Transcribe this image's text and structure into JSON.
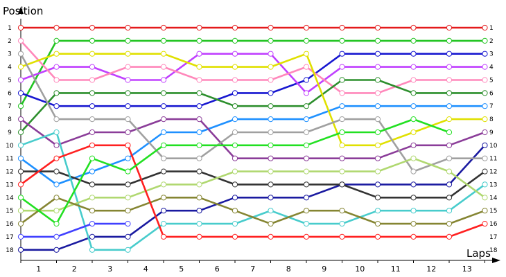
{
  "chart_data": {
    "type": "line",
    "ylabel": "Position",
    "xlabel": "Laps",
    "x_ticks": [
      "1",
      "2",
      "3",
      "4",
      "5",
      "6",
      "7",
      "8",
      "9",
      "10",
      "11",
      "12",
      "13"
    ],
    "y_ticks": [
      "1",
      "2",
      "3",
      "4",
      "5",
      "6",
      "7",
      "8",
      "9",
      "10",
      "11",
      "12",
      "13",
      "14",
      "15",
      "16",
      "17",
      "18"
    ],
    "y_inverted": true,
    "ylim": [
      1,
      18
    ],
    "grid": false,
    "series": [
      {
        "color": "#e41a1c",
        "values": [
          1,
          1,
          1,
          1,
          1,
          1,
          1,
          1,
          1,
          1,
          1,
          1,
          1,
          1
        ]
      },
      {
        "color": "#22c422",
        "values": [
          7,
          2,
          2,
          2,
          2,
          2,
          2,
          2,
          2,
          2,
          2,
          2,
          2,
          2
        ]
      },
      {
        "color": "#1717d0",
        "values": [
          6,
          7,
          7,
          7,
          7,
          7,
          6,
          6,
          5,
          3,
          3,
          3,
          3,
          3
        ]
      },
      {
        "color": "#c040ff",
        "values": [
          5,
          4,
          4,
          5,
          5,
          3,
          3,
          3,
          6,
          4,
          4,
          4,
          4,
          4
        ]
      },
      {
        "color": "#ff88bb",
        "values": [
          2,
          5,
          5,
          4,
          4,
          5,
          5,
          5,
          4,
          6,
          6,
          5,
          5,
          5
        ]
      },
      {
        "color": "#2d8f2d",
        "values": [
          9,
          6,
          6,
          6,
          6,
          6,
          7,
          7,
          7,
          5,
          5,
          6,
          6,
          6
        ]
      },
      {
        "color": "#1e90ff",
        "values": [
          11,
          13,
          12,
          11,
          9,
          9,
          8,
          8,
          8,
          7,
          7,
          7,
          7,
          7
        ]
      },
      {
        "color": "#e0e000",
        "values": [
          4,
          3,
          3,
          3,
          3,
          4,
          4,
          4,
          3,
          10,
          10,
          9,
          8,
          8
        ]
      },
      {
        "color": "#8b3d99",
        "values": [
          8,
          10,
          9,
          9,
          8,
          8,
          11,
          11,
          11,
          11,
          11,
          10,
          10,
          9
        ]
      },
      {
        "color": "#1a1aa0",
        "values": [
          18,
          18,
          17,
          17,
          15,
          15,
          14,
          14,
          14,
          13,
          13,
          13,
          13,
          10
        ]
      },
      {
        "color": "#a0a0a0",
        "values": [
          3,
          8,
          8,
          8,
          11,
          11,
          9,
          9,
          9,
          8,
          8,
          12,
          11,
          11
        ]
      },
      {
        "color": "#333333",
        "values": [
          12,
          12,
          13,
          13,
          12,
          12,
          13,
          13,
          13,
          13,
          14,
          14,
          14,
          12
        ]
      },
      {
        "color": "#48cccc",
        "values": [
          10,
          9,
          18,
          18,
          16,
          16,
          16,
          15,
          16,
          16,
          15,
          15,
          15,
          13
        ]
      },
      {
        "color": "#b0d870",
        "values": [
          15,
          15,
          14,
          14,
          13,
          13,
          12,
          12,
          12,
          12,
          12,
          11,
          12,
          14
        ]
      },
      {
        "color": "#858532",
        "values": [
          16,
          14,
          15,
          15,
          14,
          14,
          15,
          16,
          15,
          15,
          16,
          16,
          16,
          15
        ]
      },
      {
        "color": "#ff2020",
        "values": [
          13,
          11,
          10,
          10,
          17,
          17,
          17,
          17,
          17,
          17,
          17,
          17,
          17,
          16
        ]
      },
      {
        "color": "#4040ff",
        "values": [
          17,
          17,
          16,
          16,
          null,
          null,
          null,
          null,
          null,
          null,
          null,
          null,
          null,
          null
        ]
      },
      {
        "color": "#22e022",
        "values": [
          14,
          16,
          11,
          12,
          10,
          10,
          10,
          10,
          10,
          9,
          9,
          8,
          9,
          null
        ]
      }
    ]
  }
}
